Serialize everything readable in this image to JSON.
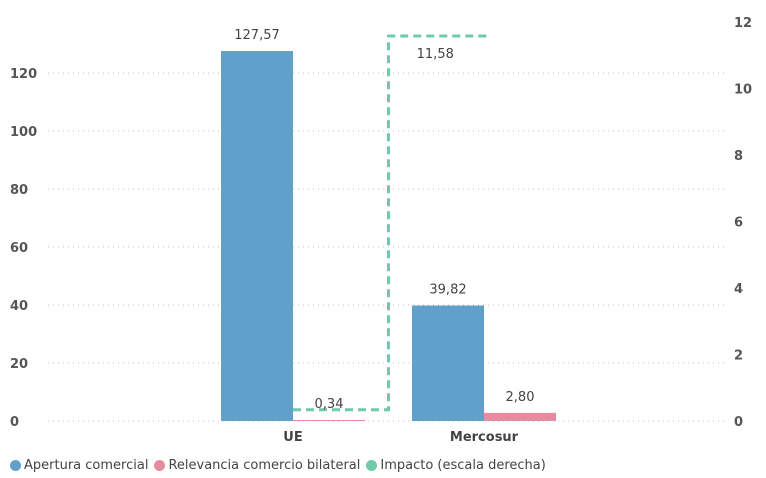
{
  "chart_data": {
    "type": "bar",
    "categories": [
      "UE",
      "Mercosur"
    ],
    "series": [
      {
        "name": "Apertura comercial",
        "values": [
          127.57,
          39.82
        ],
        "labels": [
          "127,57",
          "39,82"
        ],
        "color": "#61a0cb",
        "axis": "left"
      },
      {
        "name": "Relevancia comercio bilateral",
        "values": [
          0.34,
          2.8
        ],
        "labels": [
          "0,34",
          "2,80"
        ],
        "color": "#e58ca1",
        "axis": "left"
      },
      {
        "name": "Impacto (escala derecha)",
        "type": "line",
        "style": "dashed-step",
        "values": [
          0.34,
          11.58
        ],
        "labels": [
          "",
          "11,58"
        ],
        "color": "#6fcaa8",
        "axis": "right"
      }
    ],
    "y_left": {
      "ylim": [
        0,
        130
      ],
      "ticks": [
        "0",
        "20",
        "40",
        "60",
        "80",
        "100",
        "120"
      ],
      "tick_values": [
        0,
        20,
        40,
        60,
        80,
        100,
        120
      ]
    },
    "y_right": {
      "ylim": [
        0,
        12
      ],
      "ticks": [
        "0",
        "2",
        "4",
        "6",
        "8",
        "10",
        "12"
      ],
      "tick_values": [
        0,
        2,
        4,
        6,
        8,
        10,
        12
      ]
    },
    "grid": true,
    "legend_position": "bottom-left",
    "title": "",
    "xlabel": "",
    "ylabel": ""
  }
}
